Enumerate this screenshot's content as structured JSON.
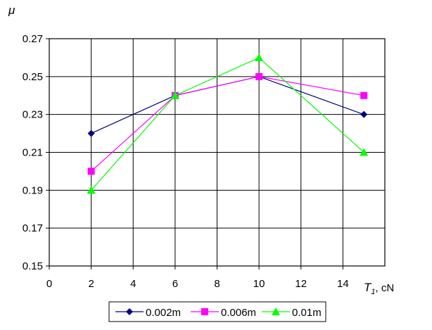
{
  "chart_data": {
    "type": "line",
    "ylabel": "μ",
    "xlabel_symbol": "T",
    "xlabel_subscript": "1",
    "xlabel_unit": ",  cN",
    "xlim": [
      0,
      16
    ],
    "ylim": [
      0.15,
      0.27
    ],
    "xticks": [
      "0",
      "2",
      "4",
      "6",
      "8",
      "10",
      "12",
      "14"
    ],
    "yticks": [
      "0.15",
      "0.17",
      "0.19",
      "0.21",
      "0.23",
      "0.25",
      "0.27"
    ],
    "grid": true,
    "legend_position": "bottom",
    "x": [
      2,
      6,
      10,
      15
    ],
    "series": [
      {
        "name": "0.002m",
        "color": "#000080",
        "marker": "diamond",
        "values": [
          0.22,
          0.24,
          0.25,
          0.23
        ]
      },
      {
        "name": "0.006m",
        "color": "#ff00ff",
        "marker": "square",
        "values": [
          0.2,
          0.24,
          0.25,
          0.24
        ]
      },
      {
        "name": "0.01m",
        "color": "#00ff00",
        "marker": "triangle",
        "values": [
          0.19,
          0.24,
          0.26,
          0.21
        ]
      }
    ]
  }
}
